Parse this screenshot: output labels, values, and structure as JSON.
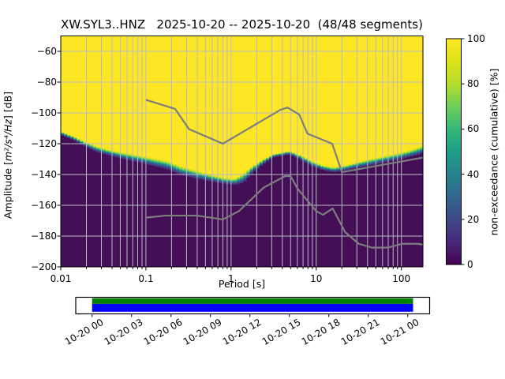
{
  "title": "XW.SYL3..HNZ   2025-10-20 -- 2025-10-20  (48/48 segments)",
  "plot": {
    "xlabel": "Period [s]",
    "ylabel_prefix": "Amplitude [",
    "ylabel_math": "m²/s⁴/Hz",
    "ylabel_suffix": "] [dB]",
    "x_tick_labels": [
      "0.01",
      "0.1",
      "1",
      "10",
      "100"
    ],
    "y_tick_labels": [
      "−60",
      "−80",
      "−100",
      "−120",
      "−140",
      "−160",
      "−180",
      "−200"
    ]
  },
  "colorbar": {
    "label": "non-exceedance (cumulative) [%]",
    "tick_labels": [
      "0",
      "20",
      "40",
      "60",
      "80",
      "100"
    ]
  },
  "timeline": {
    "tick_labels": [
      "10-20 00",
      "10-20 03",
      "10-20 06",
      "10-20 09",
      "10-20 12",
      "10-20 15",
      "10-20 18",
      "10-20 21",
      "10-21 00"
    ],
    "coverage_color": "#008000",
    "extent_color": "#0000ff"
  },
  "chart_data": {
    "type": "heatmap",
    "title": "XW.SYL3..HNZ 2025-10-20 -- 2025-10-20 (48/48 segments)",
    "xlabel": "Period [s]",
    "ylabel": "Amplitude [m2/s4/Hz] [dB]",
    "xscale": "log",
    "xlim": [
      0.01,
      179
    ],
    "ylim": [
      -200,
      -50
    ],
    "x_tick_values": [
      0.01,
      0.1,
      1,
      10,
      100
    ],
    "y_tick_values": [
      -60,
      -80,
      -100,
      -120,
      -140,
      -160,
      -180,
      -200
    ],
    "colorbar_label": "non-exceedance (cumulative) [%]",
    "colorbar_tick_values": [
      0,
      20,
      40,
      60,
      80,
      100
    ],
    "colormap": "viridis",
    "segments_used": 48,
    "segments_total": 48,
    "bin_width_octaves": 0.125,
    "cumulative_boundary": {
      "periods_s": [
        0.01,
        0.014,
        0.019,
        0.026,
        0.035,
        0.048,
        0.065,
        0.09,
        0.125,
        0.175,
        0.26,
        0.4,
        0.6,
        0.85,
        1.1,
        1.4,
        1.8,
        2.4,
        3.2,
        4.8,
        6.5,
        8.5,
        12,
        16,
        22,
        30,
        42,
        60,
        85,
        120,
        160,
        179
      ],
      "db_at_100pct": [
        -112.0,
        -115.3,
        -118.8,
        -121.8,
        -123.8,
        -125.5,
        -126.8,
        -128.3,
        -129.8,
        -131.3,
        -135.0,
        -138.0,
        -140.5,
        -142.5,
        -143.0,
        -139.5,
        -134.5,
        -130.2,
        -126.8,
        -124.8,
        -127.5,
        -131.0,
        -134.3,
        -135.5,
        -134.2,
        -132.2,
        -130.3,
        -128.5,
        -126.8,
        -124.8,
        -122.5,
        -121.5
      ],
      "db_at_0pct": [
        -114.2,
        -117.3,
        -121.3,
        -125.0,
        -127.0,
        -129.0,
        -130.7,
        -132.3,
        -134.3,
        -136.2,
        -140.0,
        -142.5,
        -144.5,
        -145.9,
        -146.5,
        -145.2,
        -138.3,
        -133.0,
        -128.6,
        -126.8,
        -130.0,
        -133.8,
        -137.0,
        -138.3,
        -137.2,
        -135.6,
        -134.0,
        -132.2,
        -130.6,
        -128.6,
        -126.8,
        -125.8
      ]
    },
    "noise_models": {
      "nhnm": {
        "periods_s": [
          0.1,
          0.22,
          0.32,
          0.8,
          3.8,
          4.6,
          6.3,
          7.9,
          15.4,
          20,
          179
        ],
        "db": [
          -91.5,
          -97.4,
          -110.5,
          -120.0,
          -98.0,
          -96.5,
          -101.0,
          -113.5,
          -120.0,
          -138.5,
          -129.0
        ]
      },
      "nlnm": {
        "periods_s": [
          0.1,
          0.17,
          0.4,
          0.8,
          1.24,
          2.4,
          4.3,
          5.0,
          6.0,
          10,
          12,
          15.6,
          21.9,
          31.6,
          45,
          70,
          101,
          154,
          179
        ],
        "db": [
          -168.0,
          -166.7,
          -166.7,
          -169.2,
          -163.7,
          -148.6,
          -141.1,
          -141.1,
          -149.0,
          -163.8,
          -166.2,
          -162.1,
          -177.5,
          -185.0,
          -187.5,
          -187.5,
          -185.0,
          -185.0,
          -185.5
        ]
      }
    },
    "colors": {
      "pct100": "#fde725",
      "pct0": "#440f57",
      "transition_bands": [
        "#c8e020",
        "#5ec962",
        "#21918c",
        "#35608d",
        "#443983"
      ],
      "noise_model_line": "#7d7d7d",
      "grid": "#babac6",
      "viridis_stops": [
        [
          0,
          "#440154"
        ],
        [
          0.1,
          "#482878"
        ],
        [
          0.2,
          "#3e4989"
        ],
        [
          0.3,
          "#31688e"
        ],
        [
          0.4,
          "#26828e"
        ],
        [
          0.5,
          "#1f9e89"
        ],
        [
          0.6,
          "#35b779"
        ],
        [
          0.7,
          "#6ece58"
        ],
        [
          0.8,
          "#b5de2b"
        ],
        [
          0.9,
          "#dce319"
        ],
        [
          1,
          "#fde725"
        ]
      ]
    }
  }
}
